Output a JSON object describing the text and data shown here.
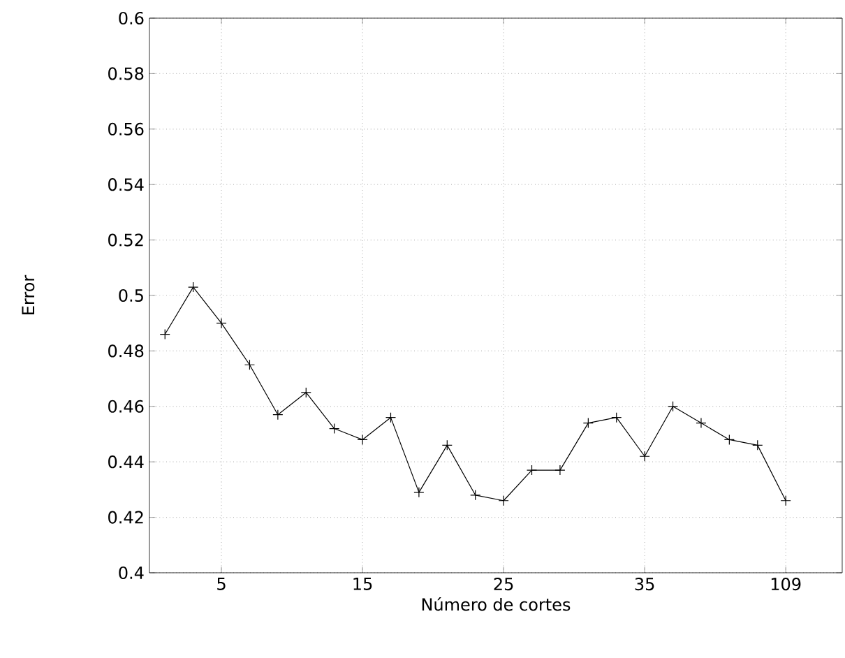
{
  "chart_data": {
    "type": "line",
    "xlabel": "Número de cortes",
    "ylabel": "Error",
    "categories": [
      null,
      null,
      "5",
      null,
      null,
      null,
      null,
      "15",
      null,
      null,
      null,
      null,
      "25",
      null,
      null,
      null,
      null,
      "35",
      null,
      null,
      null,
      null,
      "109"
    ],
    "series": [
      {
        "color": "#000000",
        "values": [
          0.486,
          0.503,
          0.49,
          0.475,
          0.457,
          0.465,
          0.452,
          0.448,
          0.456,
          0.429,
          0.446,
          0.428,
          0.426,
          0.437,
          0.437,
          0.454,
          0.456,
          0.442,
          0.46,
          0.454,
          0.448,
          0.446,
          0.426
        ]
      }
    ],
    "ylim": [
      0.4,
      0.6
    ],
    "yticks": [
      0.4,
      0.42,
      0.44,
      0.46,
      0.48,
      0.5,
      0.52,
      0.54,
      0.56,
      0.58,
      0.6
    ],
    "grid": true,
    "marker": "cross",
    "line_style": "solid"
  }
}
